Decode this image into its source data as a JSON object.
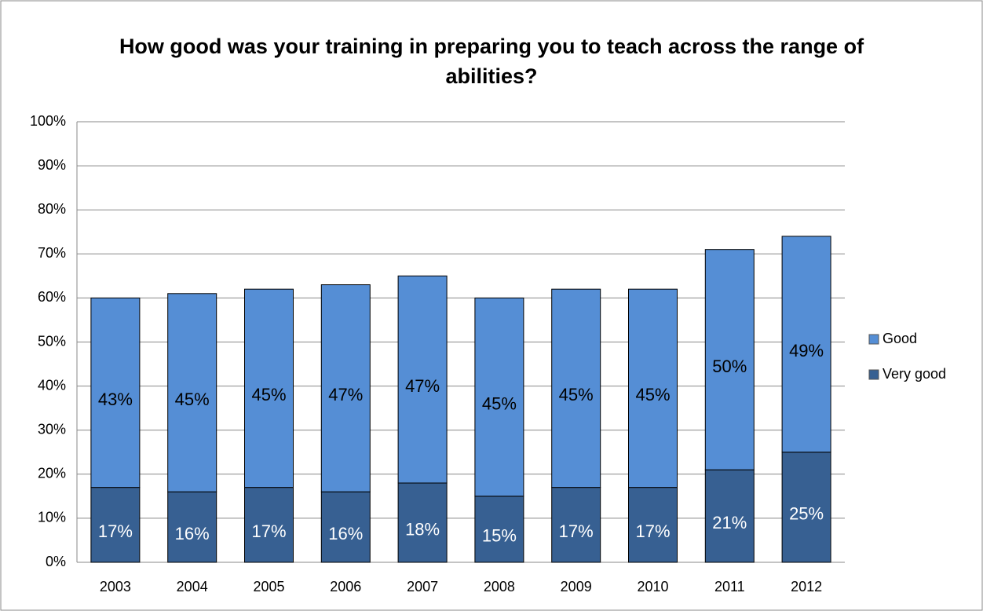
{
  "chart_data": {
    "type": "stacked_bar",
    "title": "How good was your training in preparing you to teach across the range of abilities?",
    "categories": [
      "2003",
      "2004",
      "2005",
      "2006",
      "2007",
      "2008",
      "2009",
      "2010",
      "2011",
      "2012"
    ],
    "series": [
      {
        "name": "Very good",
        "color": "#376092",
        "label_color": "#ffffff",
        "values": [
          17,
          16,
          17,
          16,
          18,
          15,
          17,
          17,
          21,
          25
        ],
        "value_labels": [
          "17%",
          "16%",
          "17%",
          "16%",
          "18%",
          "15%",
          "17%",
          "17%",
          "21%",
          "25%"
        ]
      },
      {
        "name": "Good",
        "color": "#558ed5",
        "label_color": "#000000",
        "values": [
          43,
          45,
          45,
          47,
          47,
          45,
          45,
          45,
          50,
          49
        ],
        "value_labels": [
          "43%",
          "45%",
          "45%",
          "47%",
          "47%",
          "45%",
          "45%",
          "45%",
          "50%",
          "49%"
        ]
      }
    ],
    "ylim": [
      0,
      100
    ],
    "yticks": [
      {
        "value": 0,
        "label": "0%"
      },
      {
        "value": 10,
        "label": "10%"
      },
      {
        "value": 20,
        "label": "20%"
      },
      {
        "value": 30,
        "label": "30%"
      },
      {
        "value": 40,
        "label": "40%"
      },
      {
        "value": 50,
        "label": "50%"
      },
      {
        "value": 60,
        "label": "60%"
      },
      {
        "value": 70,
        "label": "70%"
      },
      {
        "value": 80,
        "label": "80%"
      },
      {
        "value": 90,
        "label": "90%"
      },
      {
        "value": 100,
        "label": "100%"
      }
    ],
    "grid": true,
    "legend": "right"
  }
}
